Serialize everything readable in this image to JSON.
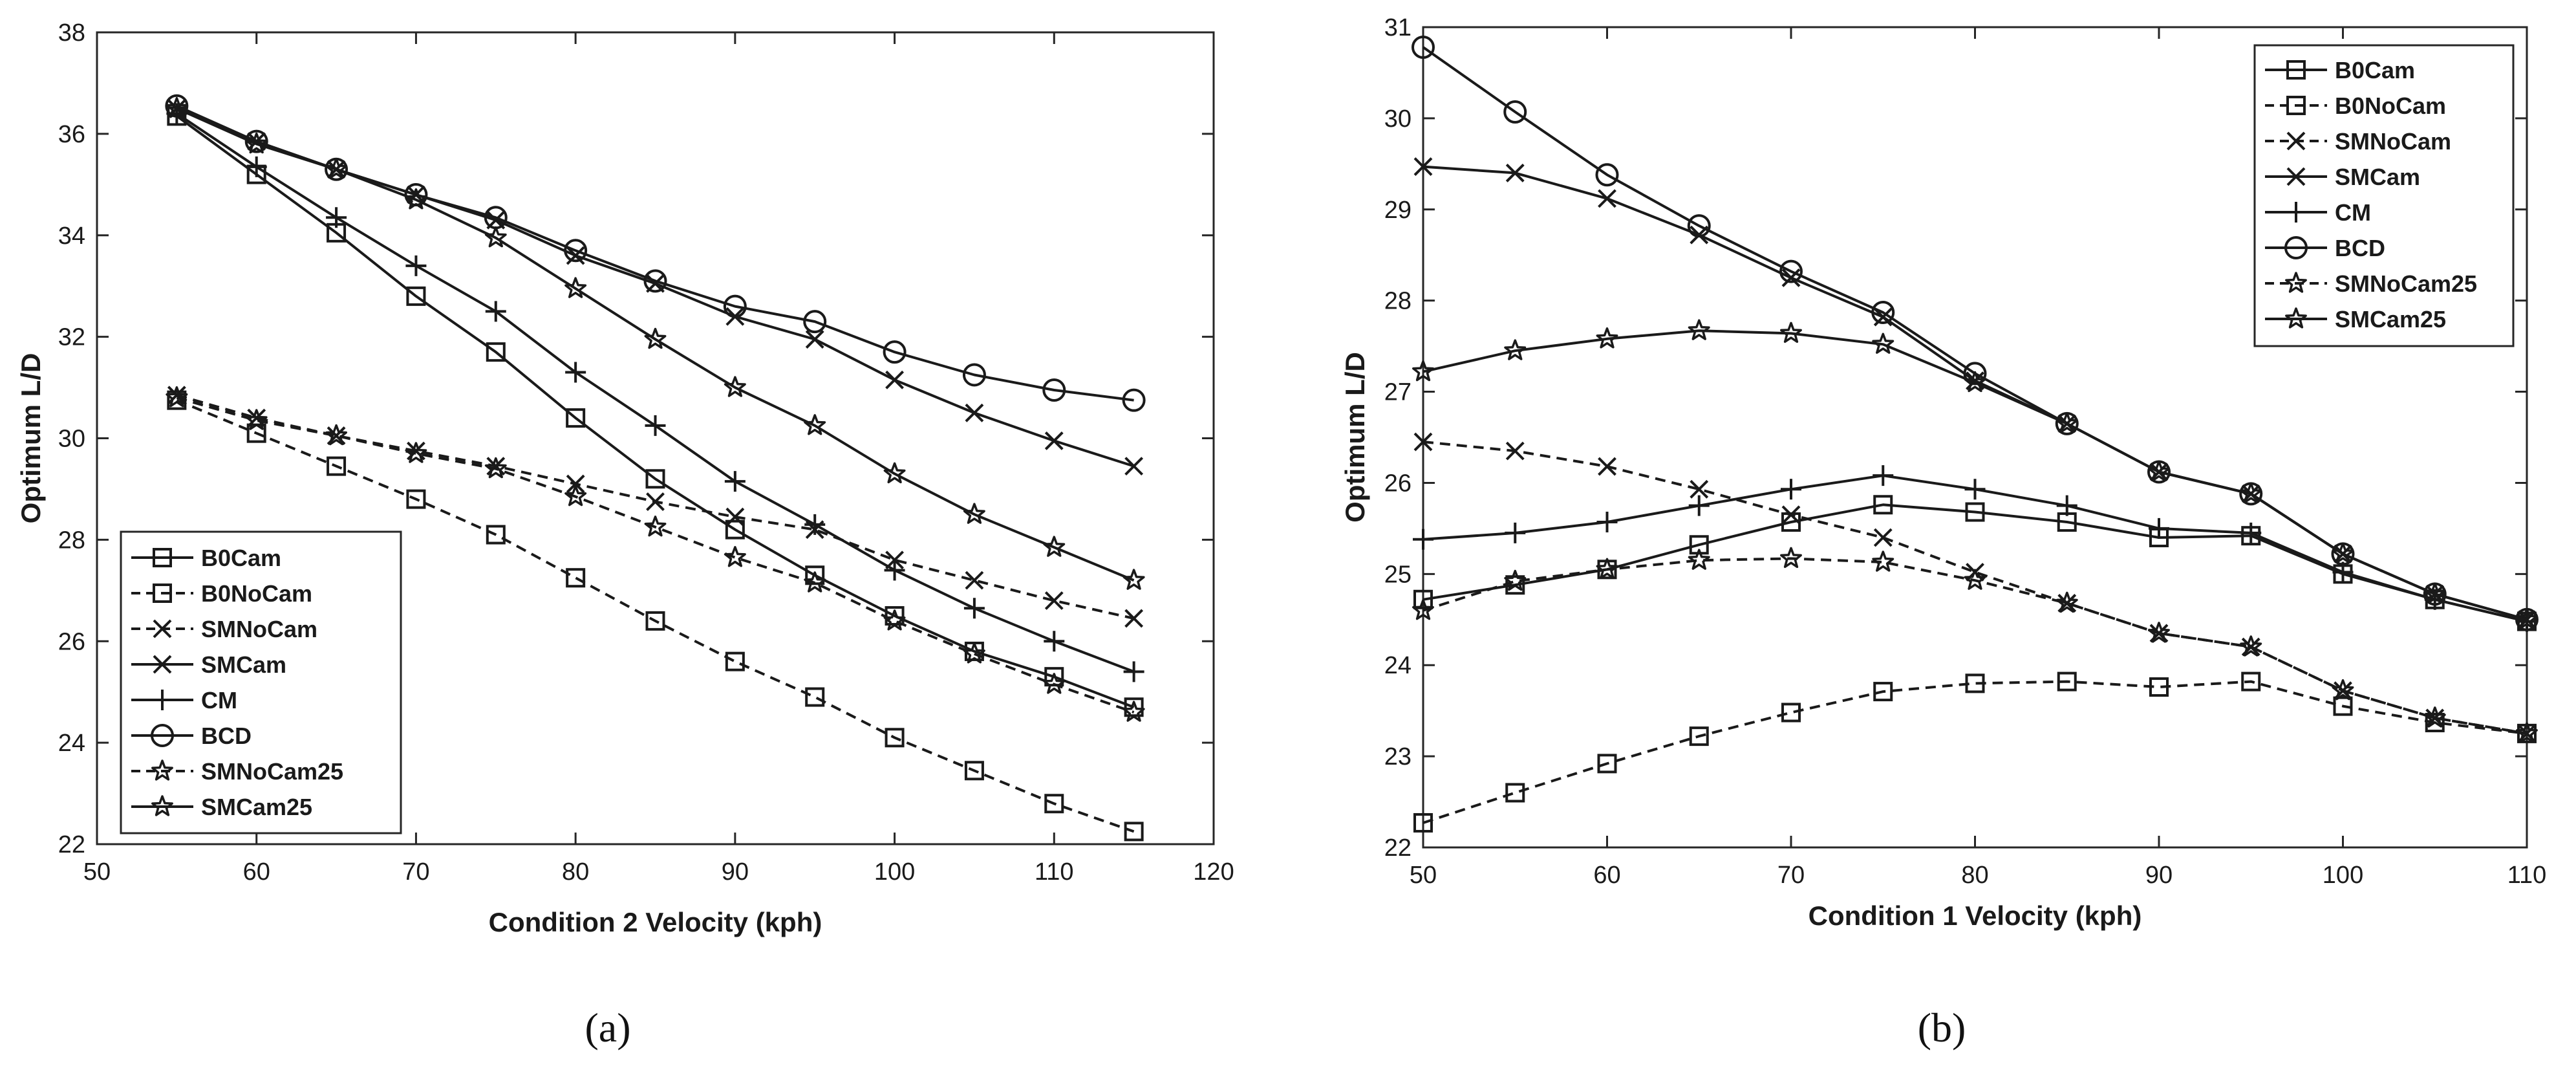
{
  "chart_data": [
    {
      "type": "line",
      "panel": "(a)",
      "xlabel": "Condition 2 Velocity (kph)",
      "ylabel": "Optimum L/D",
      "xlim": [
        50,
        120
      ],
      "ylim": [
        22,
        38
      ],
      "xticks": [
        50,
        60,
        70,
        80,
        90,
        100,
        110,
        120
      ],
      "yticks": [
        22,
        24,
        26,
        28,
        30,
        32,
        34,
        36,
        38
      ],
      "grid": false,
      "legend_position": "bottom-left",
      "x": [
        55,
        60,
        65,
        70,
        75,
        80,
        85,
        90,
        95,
        100,
        105,
        110,
        115
      ],
      "series": [
        {
          "name": "B0Cam",
          "marker": "square",
          "dash": "solid",
          "values": [
            36.35,
            35.2,
            34.05,
            32.8,
            31.7,
            30.4,
            29.2,
            28.2,
            27.3,
            26.5,
            25.8,
            25.3,
            24.7
          ]
        },
        {
          "name": "B0NoCam",
          "marker": "square",
          "dash": "dashed",
          "values": [
            30.75,
            30.1,
            29.45,
            28.8,
            28.1,
            27.25,
            26.4,
            25.6,
            24.9,
            24.1,
            23.45,
            22.8,
            22.25
          ]
        },
        {
          "name": "SMNoCam",
          "marker": "x",
          "dash": "dashed",
          "values": [
            30.85,
            30.4,
            30.05,
            29.75,
            29.45,
            29.1,
            28.75,
            28.45,
            28.2,
            27.6,
            27.2,
            26.8,
            26.45
          ]
        },
        {
          "name": "SMCam",
          "marker": "x",
          "dash": "solid",
          "values": [
            36.5,
            35.85,
            35.3,
            34.8,
            34.3,
            33.6,
            33.05,
            32.4,
            31.95,
            31.15,
            30.5,
            29.95,
            29.45
          ]
        },
        {
          "name": "CM",
          "marker": "plus",
          "dash": "solid",
          "values": [
            36.4,
            35.35,
            34.35,
            33.4,
            32.5,
            31.3,
            30.25,
            29.15,
            28.3,
            27.4,
            26.65,
            26.0,
            25.4
          ]
        },
        {
          "name": "BCD",
          "marker": "circle",
          "dash": "solid",
          "values": [
            36.55,
            35.85,
            35.3,
            34.8,
            34.35,
            33.7,
            33.1,
            32.6,
            32.3,
            31.7,
            31.25,
            30.95,
            30.75
          ]
        },
        {
          "name": "SMNoCam25",
          "marker": "star",
          "dash": "dashed",
          "values": [
            30.8,
            30.35,
            30.05,
            29.7,
            29.4,
            28.85,
            28.25,
            27.65,
            27.15,
            26.4,
            25.75,
            25.15,
            24.6
          ]
        },
        {
          "name": "SMCam25",
          "marker": "star",
          "dash": "solid",
          "values": [
            36.5,
            35.8,
            35.3,
            34.7,
            33.95,
            32.95,
            31.95,
            31.0,
            30.25,
            29.3,
            28.5,
            27.85,
            27.2
          ]
        }
      ],
      "caption": "(a)"
    },
    {
      "type": "line",
      "panel": "(b)",
      "xlabel": "Condition 1 Velocity (kph)",
      "ylabel": "Optimum L/D",
      "xlim": [
        50,
        110
      ],
      "ylim": [
        22,
        31
      ],
      "xticks": [
        50,
        60,
        70,
        80,
        90,
        100,
        110
      ],
      "yticks": [
        22,
        23,
        24,
        25,
        26,
        27,
        28,
        29,
        30,
        31
      ],
      "grid": false,
      "legend_position": "top-right",
      "x": [
        50,
        55,
        60,
        65,
        70,
        75,
        80,
        85,
        90,
        95,
        100,
        105,
        110
      ],
      "series": [
        {
          "name": "B0Cam",
          "marker": "square",
          "dash": "solid",
          "values": [
            24.72,
            24.88,
            25.05,
            25.32,
            25.57,
            25.76,
            25.68,
            25.57,
            25.4,
            25.42,
            25.0,
            24.72,
            24.48
          ]
        },
        {
          "name": "B0NoCam",
          "marker": "square",
          "dash": "dashed",
          "values": [
            22.27,
            22.6,
            22.92,
            23.22,
            23.48,
            23.71,
            23.8,
            23.82,
            23.76,
            23.82,
            23.55,
            23.37,
            23.25
          ]
        },
        {
          "name": "SMNoCam",
          "marker": "x",
          "dash": "dashed",
          "values": [
            26.45,
            26.35,
            26.18,
            25.93,
            25.65,
            25.4,
            25.02,
            24.68,
            24.35,
            24.2,
            23.72,
            23.42,
            23.25
          ]
        },
        {
          "name": "SMCam",
          "marker": "x",
          "dash": "solid",
          "values": [
            29.47,
            29.4,
            29.12,
            28.72,
            28.25,
            27.82,
            27.12,
            26.65,
            26.12,
            25.88,
            25.22,
            24.78,
            24.5
          ]
        },
        {
          "name": "CM",
          "marker": "plus",
          "dash": "solid",
          "values": [
            25.38,
            25.45,
            25.57,
            25.75,
            25.93,
            26.08,
            25.93,
            25.75,
            25.5,
            25.45,
            25.02,
            24.72,
            24.48
          ]
        },
        {
          "name": "BCD",
          "marker": "circle",
          "dash": "solid",
          "values": [
            30.78,
            30.07,
            29.38,
            28.82,
            28.32,
            27.87,
            27.2,
            26.65,
            26.12,
            25.88,
            25.22,
            24.78,
            24.5
          ]
        },
        {
          "name": "SMNoCam25",
          "marker": "star",
          "dash": "dashed",
          "values": [
            24.6,
            24.92,
            25.05,
            25.15,
            25.17,
            25.13,
            24.93,
            24.68,
            24.35,
            24.2,
            23.72,
            23.42,
            23.25
          ]
        },
        {
          "name": "SMCam25",
          "marker": "star",
          "dash": "solid",
          "values": [
            27.22,
            27.45,
            27.58,
            27.67,
            27.64,
            27.52,
            27.1,
            26.65,
            26.12,
            25.88,
            25.22,
            24.78,
            24.5
          ]
        }
      ],
      "caption": "(b)"
    }
  ]
}
